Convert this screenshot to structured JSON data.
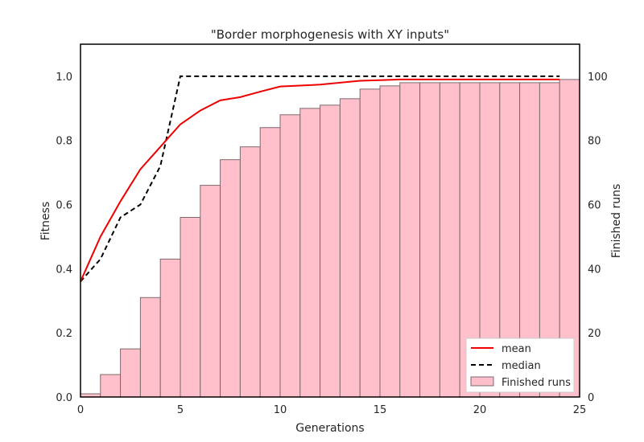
{
  "chart_data": {
    "type": "bar+line",
    "title": "\"Border morphogenesis with XY inputs\"",
    "xlabel": "Generations",
    "ylabel": "Fitness",
    "y2label": "Finished runs",
    "xlim": [
      0,
      25
    ],
    "ylim": [
      0,
      1.1
    ],
    "y2lim": [
      0,
      110
    ],
    "xticks": [
      "0",
      "5",
      "10",
      "15",
      "20",
      "25"
    ],
    "yticks": [
      "0.0",
      "0.2",
      "0.4",
      "0.6",
      "0.8",
      "1.0"
    ],
    "y2ticks": [
      "0",
      "20",
      "40",
      "60",
      "80",
      "100"
    ],
    "legend_placement": "lower-right",
    "grid": false,
    "colors": {
      "mean": "#ee0000",
      "median": "#000000",
      "bars_fill": "#ffc0cb",
      "bars_edge": "#7a6a6d"
    },
    "series": [
      {
        "name": "mean",
        "style": "solid",
        "x": [
          0,
          1,
          2,
          3,
          4,
          5,
          6,
          7,
          8,
          9,
          10,
          11,
          12,
          13,
          14,
          15,
          16,
          17,
          18,
          19,
          20,
          21,
          22,
          23,
          24
        ],
        "values": [
          0.36,
          0.5,
          0.61,
          0.71,
          0.78,
          0.85,
          0.893,
          0.925,
          0.935,
          0.952,
          0.968,
          0.971,
          0.974,
          0.98,
          0.986,
          0.988,
          0.99,
          0.99,
          0.99,
          0.99,
          0.99,
          0.99,
          0.99,
          0.99,
          0.99
        ]
      },
      {
        "name": "median",
        "style": "dashed",
        "x": [
          0,
          1,
          2,
          3,
          4,
          5,
          6,
          7,
          8,
          9,
          10,
          11,
          12,
          13,
          14,
          15,
          16,
          17,
          18,
          19,
          20,
          21,
          22,
          23,
          24
        ],
        "values": [
          0.36,
          0.43,
          0.56,
          0.6,
          0.72,
          1.0,
          1.0,
          1.0,
          1.0,
          1.0,
          1.0,
          1.0,
          1.0,
          1.0,
          1.0,
          1.0,
          1.0,
          1.0,
          1.0,
          1.0,
          1.0,
          1.0,
          1.0,
          1.0,
          1.0
        ]
      },
      {
        "name": "Finished runs",
        "type": "bar",
        "axis": "right",
        "x": [
          0,
          1,
          2,
          3,
          4,
          5,
          6,
          7,
          8,
          9,
          10,
          11,
          12,
          13,
          14,
          15,
          16,
          17,
          18,
          19,
          20,
          21,
          22,
          23,
          24
        ],
        "values": [
          1,
          7,
          15,
          31,
          43,
          56,
          66,
          74,
          78,
          84,
          88,
          90,
          91,
          93,
          96,
          97,
          98,
          98,
          98,
          98,
          98,
          98,
          98,
          98,
          99
        ]
      }
    ]
  }
}
